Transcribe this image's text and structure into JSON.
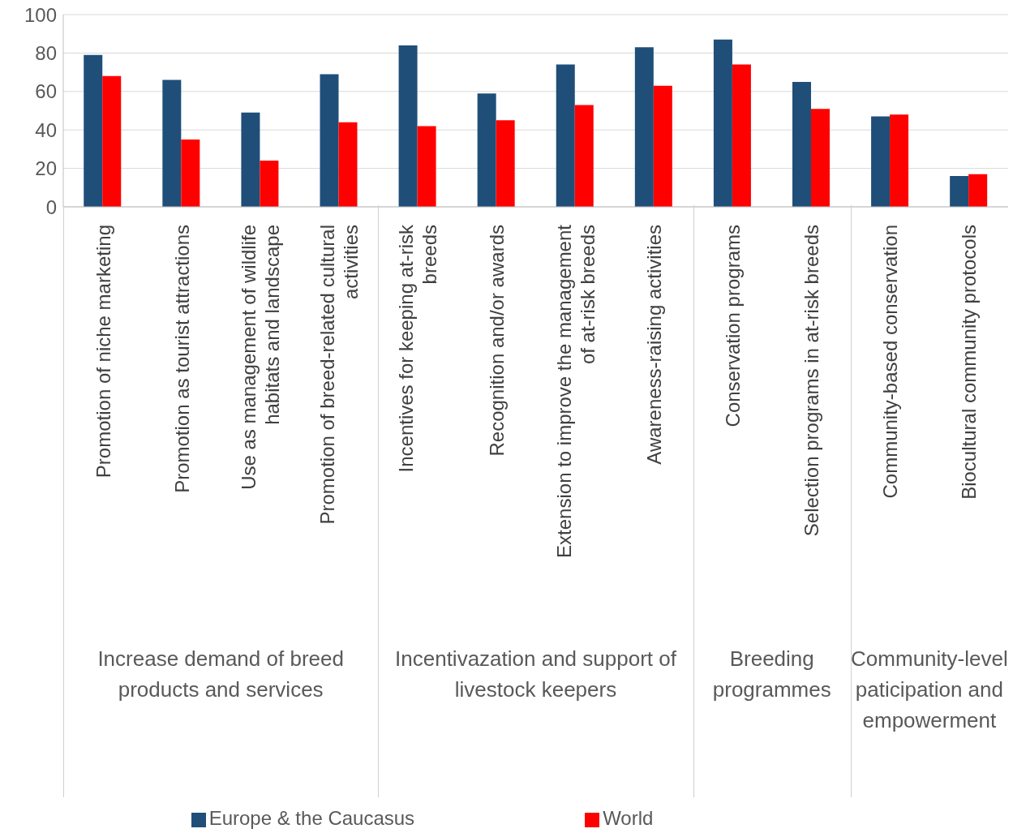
{
  "chart_data": {
    "type": "bar",
    "categories": [
      "Promotion of niche marketing",
      "Promotion as tourist attractions",
      "Use as management of wildlife habitats and landscape",
      "Promotion of breed-related cultural activities",
      "Incentives for keeping at-risk breeds",
      "Recognition and/or awards",
      "Extension to improve the management of at-risk breeds",
      "Awareness-raising activities",
      "Conservation programs",
      "Selection programs in at-risk breeds",
      "Community-based conservation",
      "Biocultural community protocols"
    ],
    "series": [
      {
        "name": "Europe & the Caucasus",
        "color": "#1f4e79",
        "values": [
          79,
          66,
          49,
          69,
          84,
          59,
          74,
          83,
          87,
          65,
          47,
          16
        ]
      },
      {
        "name": "World",
        "color": "#ff0000",
        "values": [
          68,
          35,
          24,
          44,
          42,
          45,
          53,
          63,
          74,
          51,
          48,
          17
        ]
      }
    ],
    "annotations": [
      "Increase demand of breed products and services",
      "Incentivazation and support of livestock keepers",
      "Breeding programmes",
      "Community-level paticipation and empowerment"
    ],
    "ylim": [
      0,
      100
    ],
    "yticks": [
      0,
      20,
      40,
      60,
      80,
      100
    ],
    "grid": "y",
    "legend": "bottom"
  }
}
